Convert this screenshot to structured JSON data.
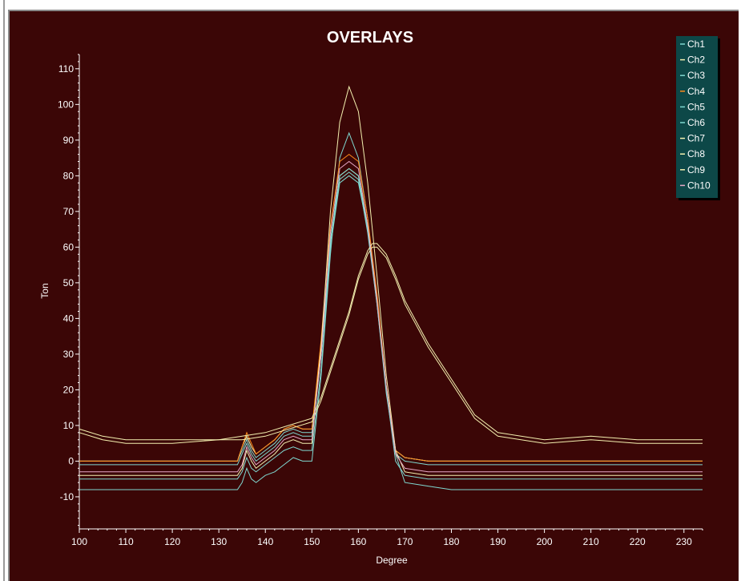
{
  "chart_data": {
    "type": "line",
    "title": "OVERLAYS",
    "xlabel": "Degree",
    "ylabel": "Ton",
    "xlim": [
      100,
      234
    ],
    "ylim": [
      -19,
      114
    ],
    "x_ticks": [
      100,
      110,
      120,
      130,
      140,
      150,
      160,
      170,
      180,
      190,
      200,
      210,
      220,
      230
    ],
    "y_ticks": [
      -10,
      0,
      10,
      20,
      30,
      40,
      50,
      60,
      70,
      80,
      90,
      100,
      110
    ],
    "grid": false,
    "legend_position": "top-right",
    "colors": {
      "background": "#3b0606",
      "axis": "#ffffff",
      "legend_bg": "#0d4848"
    },
    "series": [
      {
        "name": "Ch1",
        "color": "#7fd8d0",
        "x": [
          100,
          134,
          135,
          136,
          137,
          138,
          140,
          142,
          144,
          146,
          148,
          150,
          152,
          154,
          156,
          158,
          160,
          162,
          164,
          166,
          168,
          170,
          175,
          180,
          190,
          200,
          210,
          220,
          230,
          234
        ],
        "y": [
          0,
          0,
          3,
          6,
          3,
          1,
          3,
          5,
          8,
          9,
          8,
          8,
          30,
          60,
          78,
          80,
          78,
          65,
          45,
          20,
          3,
          1,
          0,
          0,
          0,
          0,
          0,
          0,
          0,
          0
        ]
      },
      {
        "name": "Ch2",
        "color": "#f4f1b0",
        "x": [
          100,
          134,
          135,
          136,
          137,
          138,
          140,
          142,
          144,
          146,
          148,
          150,
          152,
          154,
          156,
          158,
          160,
          162,
          164,
          166,
          168,
          170,
          175,
          180,
          190,
          200,
          210,
          220,
          230,
          234
        ],
        "y": [
          0,
          0,
          4,
          7,
          4,
          2,
          4,
          6,
          9,
          10,
          9,
          9,
          32,
          62,
          80,
          82,
          80,
          66,
          46,
          21,
          3,
          1,
          0,
          0,
          0,
          0,
          0,
          0,
          0,
          0
        ]
      },
      {
        "name": "Ch3",
        "color": "#7fd8d0",
        "x": [
          100,
          134,
          135,
          136,
          137,
          138,
          140,
          142,
          144,
          146,
          148,
          150,
          152,
          154,
          156,
          158,
          160,
          162,
          164,
          166,
          168,
          170,
          175,
          180,
          190,
          200,
          210,
          220,
          230,
          234
        ],
        "y": [
          -8,
          -8,
          -6,
          -2,
          -5,
          -6,
          -4,
          -3,
          -1,
          1,
          0,
          0,
          24,
          58,
          85,
          92,
          85,
          68,
          45,
          20,
          2,
          -6,
          -7,
          -8,
          -8,
          -8,
          -8,
          -8,
          -8,
          -8
        ]
      },
      {
        "name": "Ch4",
        "color": "#ff8c1a",
        "x": [
          100,
          134,
          135,
          136,
          137,
          138,
          140,
          142,
          144,
          146,
          148,
          150,
          152,
          154,
          156,
          158,
          160,
          162,
          164,
          166,
          168,
          170,
          175,
          180,
          190,
          200,
          210,
          220,
          230,
          234
        ],
        "y": [
          0,
          0,
          4,
          8,
          5,
          2,
          4,
          6,
          9,
          10,
          9,
          9,
          34,
          66,
          84,
          86,
          84,
          68,
          47,
          21,
          3,
          1,
          0,
          0,
          0,
          0,
          0,
          0,
          0,
          0
        ]
      },
      {
        "name": "Ch5",
        "color": "#7fd8d0",
        "x": [
          100,
          134,
          135,
          136,
          137,
          138,
          140,
          142,
          144,
          146,
          148,
          150,
          152,
          154,
          156,
          158,
          160,
          162,
          164,
          166,
          168,
          170,
          175,
          180,
          190,
          200,
          210,
          220,
          230,
          234
        ],
        "y": [
          -1,
          -1,
          2,
          5,
          2,
          0,
          2,
          4,
          7,
          8,
          7,
          7,
          30,
          62,
          79,
          81,
          79,
          64,
          44,
          19,
          2,
          0,
          -1,
          -1,
          -1,
          -1,
          -1,
          -1,
          -1,
          -1
        ]
      },
      {
        "name": "Ch6",
        "color": "#7fd8d0",
        "x": [
          100,
          134,
          135,
          136,
          137,
          138,
          140,
          142,
          144,
          146,
          148,
          150,
          152,
          154,
          156,
          158,
          160,
          162,
          164,
          166,
          168,
          170,
          175,
          180,
          190,
          200,
          210,
          220,
          230,
          234
        ],
        "y": [
          -5,
          -5,
          -3,
          1,
          -2,
          -3,
          -1,
          1,
          3,
          4,
          3,
          3,
          26,
          60,
          80,
          82,
          80,
          65,
          44,
          20,
          0,
          -4,
          -5,
          -5,
          -5,
          -5,
          -5,
          -5,
          -5,
          -5
        ]
      },
      {
        "name": "Ch7",
        "color": "#f4f1b0",
        "x": [
          100,
          105,
          110,
          120,
          130,
          135,
          140,
          145,
          150,
          152,
          155,
          158,
          160,
          162,
          163,
          164,
          166,
          168,
          170,
          175,
          180,
          185,
          190,
          200,
          210,
          220,
          230,
          234
        ],
        "y": [
          9,
          7,
          6,
          6,
          6,
          7,
          8,
          10,
          12,
          18,
          30,
          42,
          52,
          59,
          61,
          61,
          58,
          52,
          45,
          33,
          23,
          13,
          8,
          6,
          7,
          6,
          6,
          6
        ]
      },
      {
        "name": "Ch8",
        "color": "#f4f1b0",
        "x": [
          100,
          105,
          110,
          120,
          130,
          135,
          140,
          145,
          150,
          152,
          155,
          158,
          160,
          162,
          163,
          164,
          166,
          168,
          170,
          175,
          180,
          185,
          190,
          200,
          210,
          220,
          230,
          234
        ],
        "y": [
          8,
          6,
          5,
          5,
          6,
          6,
          7,
          9,
          11,
          17,
          29,
          41,
          51,
          58,
          60,
          60,
          57,
          51,
          44,
          32,
          22,
          12,
          7,
          5,
          6,
          5,
          5,
          5
        ]
      },
      {
        "name": "Ch9",
        "color": "#f4f1b0",
        "x": [
          100,
          134,
          135,
          136,
          137,
          138,
          140,
          142,
          144,
          146,
          148,
          150,
          152,
          154,
          156,
          158,
          160,
          162,
          164,
          166,
          168,
          170,
          175,
          180,
          190,
          200,
          210,
          220,
          230,
          234
        ],
        "y": [
          -4,
          -4,
          -2,
          3,
          0,
          -2,
          0,
          2,
          5,
          6,
          5,
          5,
          32,
          70,
          95,
          105,
          98,
          78,
          52,
          24,
          3,
          -3,
          -4,
          -4,
          -4,
          -4,
          -4,
          -4,
          -4,
          -4
        ]
      },
      {
        "name": "Ch10",
        "color": "#e8a8c8",
        "x": [
          100,
          134,
          135,
          136,
          137,
          138,
          140,
          142,
          144,
          146,
          148,
          150,
          152,
          154,
          156,
          158,
          160,
          162,
          164,
          166,
          168,
          170,
          175,
          180,
          190,
          200,
          210,
          220,
          230,
          234
        ],
        "y": [
          -3,
          -3,
          -1,
          4,
          1,
          -1,
          1,
          3,
          6,
          7,
          6,
          6,
          30,
          64,
          82,
          84,
          82,
          66,
          45,
          21,
          2,
          -2,
          -3,
          -3,
          -3,
          -3,
          -3,
          -3,
          -3,
          -3
        ]
      }
    ]
  }
}
